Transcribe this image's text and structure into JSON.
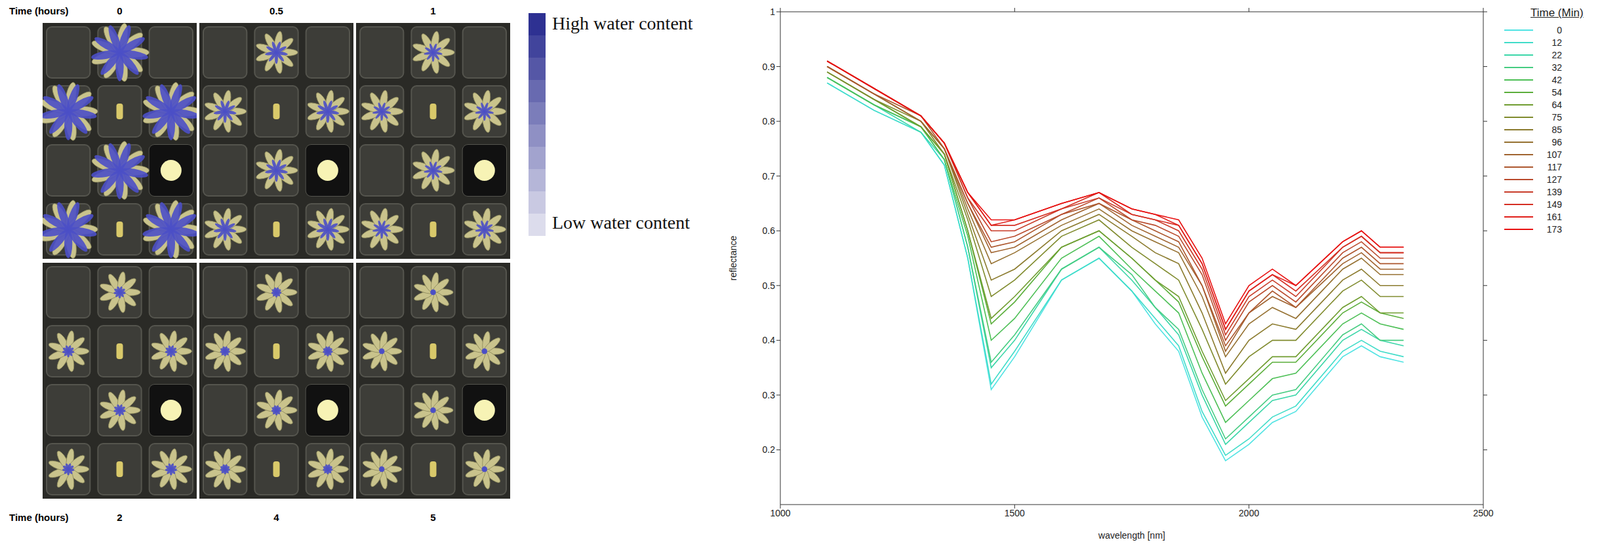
{
  "image_panel": {
    "top_time_label": "Time (hours)",
    "bottom_time_label": "Time (hours)",
    "top_times": [
      "0",
      "0.5",
      "1"
    ],
    "bottom_times": [
      "2",
      "4",
      "5"
    ],
    "colorbar": {
      "high_label": "High water content",
      "low_label": "Low water content"
    }
  },
  "chart_data": {
    "type": "line",
    "x_label": "wavelength [nm]",
    "y_label": "reflectance",
    "legend_title": "Time (Min)",
    "legend": "upper right",
    "xlim": [
      1000,
      2500
    ],
    "xticks": [
      1000,
      1500,
      2000,
      2500
    ],
    "ylim": [
      0.1,
      1
    ],
    "yticks": [
      0.2,
      0.3,
      0.4,
      0.5,
      0.6,
      0.7,
      0.8,
      0.9,
      1
    ],
    "x": [
      1100,
      1200,
      1300,
      1350,
      1400,
      1450,
      1500,
      1600,
      1680,
      1750,
      1800,
      1850,
      1900,
      1950,
      2000,
      2050,
      2100,
      2200,
      2240,
      2280,
      2330
    ],
    "series": [
      {
        "name": "0",
        "color": "#4fe3e3",
        "values": [
          0.87,
          0.82,
          0.78,
          0.72,
          0.55,
          0.31,
          0.37,
          0.51,
          0.55,
          0.49,
          0.43,
          0.38,
          0.26,
          0.18,
          0.21,
          0.25,
          0.27,
          0.37,
          0.39,
          0.37,
          0.36
        ]
      },
      {
        "name": "12",
        "color": "#3fdcc8",
        "values": [
          0.87,
          0.82,
          0.78,
          0.72,
          0.55,
          0.32,
          0.38,
          0.51,
          0.55,
          0.49,
          0.44,
          0.39,
          0.27,
          0.19,
          0.22,
          0.26,
          0.28,
          0.38,
          0.4,
          0.38,
          0.37
        ]
      },
      {
        "name": "22",
        "color": "#3ad6a8",
        "values": [
          0.88,
          0.83,
          0.78,
          0.73,
          0.57,
          0.35,
          0.4,
          0.53,
          0.57,
          0.51,
          0.46,
          0.41,
          0.3,
          0.21,
          0.25,
          0.29,
          0.3,
          0.4,
          0.42,
          0.4,
          0.39
        ]
      },
      {
        "name": "32",
        "color": "#45cc80",
        "values": [
          0.88,
          0.83,
          0.79,
          0.73,
          0.57,
          0.36,
          0.41,
          0.53,
          0.57,
          0.52,
          0.46,
          0.42,
          0.31,
          0.22,
          0.26,
          0.3,
          0.31,
          0.41,
          0.43,
          0.4,
          0.4
        ]
      },
      {
        "name": "42",
        "color": "#4cbf55",
        "values": [
          0.88,
          0.83,
          0.79,
          0.73,
          0.59,
          0.4,
          0.44,
          0.55,
          0.59,
          0.53,
          0.49,
          0.45,
          0.34,
          0.25,
          0.29,
          0.33,
          0.34,
          0.43,
          0.45,
          0.43,
          0.42
        ]
      },
      {
        "name": "54",
        "color": "#5aae3a",
        "values": [
          0.89,
          0.84,
          0.79,
          0.74,
          0.6,
          0.43,
          0.47,
          0.57,
          0.6,
          0.55,
          0.51,
          0.47,
          0.37,
          0.28,
          0.32,
          0.36,
          0.36,
          0.45,
          0.47,
          0.45,
          0.44
        ]
      },
      {
        "name": "64",
        "color": "#6f9c2f",
        "values": [
          0.89,
          0.84,
          0.79,
          0.74,
          0.6,
          0.44,
          0.48,
          0.57,
          0.6,
          0.55,
          0.51,
          0.48,
          0.38,
          0.29,
          0.33,
          0.37,
          0.37,
          0.46,
          0.48,
          0.45,
          0.45
        ]
      },
      {
        "name": "75",
        "color": "#7f8a2c",
        "values": [
          0.89,
          0.84,
          0.8,
          0.74,
          0.62,
          0.48,
          0.51,
          0.59,
          0.62,
          0.57,
          0.54,
          0.51,
          0.42,
          0.32,
          0.37,
          0.4,
          0.4,
          0.49,
          0.51,
          0.48,
          0.48
        ]
      },
      {
        "name": "85",
        "color": "#8a7a2c",
        "values": [
          0.9,
          0.85,
          0.8,
          0.75,
          0.63,
          0.51,
          0.53,
          0.6,
          0.63,
          0.59,
          0.56,
          0.54,
          0.45,
          0.34,
          0.4,
          0.43,
          0.42,
          0.51,
          0.53,
          0.5,
          0.5
        ]
      },
      {
        "name": "96",
        "color": "#957030",
        "values": [
          0.9,
          0.85,
          0.8,
          0.75,
          0.64,
          0.54,
          0.56,
          0.61,
          0.64,
          0.6,
          0.58,
          0.56,
          0.48,
          0.37,
          0.43,
          0.46,
          0.44,
          0.53,
          0.55,
          0.52,
          0.52
        ]
      },
      {
        "name": "107",
        "color": "#a0632f",
        "values": [
          0.9,
          0.85,
          0.8,
          0.75,
          0.65,
          0.56,
          0.57,
          0.62,
          0.65,
          0.61,
          0.59,
          0.57,
          0.5,
          0.38,
          0.45,
          0.48,
          0.46,
          0.54,
          0.56,
          0.53,
          0.53
        ]
      },
      {
        "name": "117",
        "color": "#ac562d",
        "values": [
          0.9,
          0.85,
          0.81,
          0.75,
          0.65,
          0.57,
          0.58,
          0.63,
          0.65,
          0.62,
          0.6,
          0.58,
          0.5,
          0.39,
          0.45,
          0.49,
          0.46,
          0.55,
          0.57,
          0.54,
          0.54
        ]
      },
      {
        "name": "127",
        "color": "#b9492b",
        "values": [
          0.91,
          0.86,
          0.81,
          0.76,
          0.66,
          0.58,
          0.59,
          0.63,
          0.66,
          0.62,
          0.61,
          0.59,
          0.52,
          0.4,
          0.47,
          0.5,
          0.47,
          0.56,
          0.58,
          0.55,
          0.55
        ]
      },
      {
        "name": "139",
        "color": "#c83b28",
        "values": [
          0.91,
          0.86,
          0.81,
          0.76,
          0.66,
          0.6,
          0.6,
          0.64,
          0.66,
          0.63,
          0.62,
          0.6,
          0.53,
          0.41,
          0.48,
          0.51,
          0.48,
          0.57,
          0.59,
          0.56,
          0.56
        ]
      },
      {
        "name": "149",
        "color": "#d52e22",
        "values": [
          0.91,
          0.86,
          0.81,
          0.76,
          0.67,
          0.61,
          0.61,
          0.64,
          0.67,
          0.63,
          0.62,
          0.61,
          0.54,
          0.42,
          0.49,
          0.52,
          0.49,
          0.57,
          0.59,
          0.56,
          0.56
        ]
      },
      {
        "name": "161",
        "color": "#e01e1a",
        "values": [
          0.91,
          0.86,
          0.81,
          0.76,
          0.67,
          0.61,
          0.62,
          0.65,
          0.67,
          0.64,
          0.63,
          0.61,
          0.54,
          0.42,
          0.49,
          0.52,
          0.5,
          0.58,
          0.6,
          0.57,
          0.57
        ]
      },
      {
        "name": "173",
        "color": "#e81010",
        "values": [
          0.91,
          0.86,
          0.81,
          0.76,
          0.67,
          0.62,
          0.62,
          0.65,
          0.67,
          0.64,
          0.63,
          0.62,
          0.55,
          0.43,
          0.5,
          0.53,
          0.5,
          0.58,
          0.6,
          0.57,
          0.57
        ]
      }
    ]
  }
}
